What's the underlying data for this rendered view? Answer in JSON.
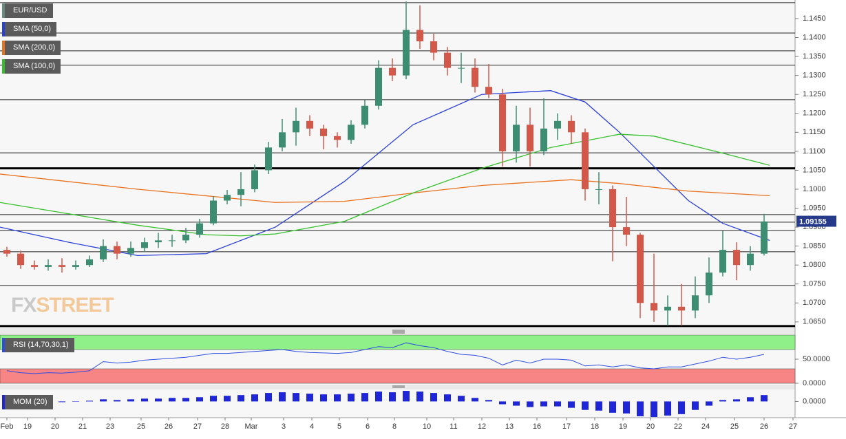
{
  "chart_data": [
    {
      "type": "candlestick",
      "title": "EUR/USD",
      "title_color": "#6a8a80",
      "ylim": [
        1.0637,
        1.1499
      ],
      "yticks": [
        {
          "value": 1.065,
          "label": "1.0650"
        },
        {
          "value": 1.07,
          "label": "1.0700"
        },
        {
          "value": 1.075,
          "label": "1.0750"
        },
        {
          "value": 1.08,
          "label": "1.0800"
        },
        {
          "value": 1.085,
          "label": "1.0850"
        },
        {
          "value": 1.09,
          "label": "1.0900"
        },
        {
          "value": 1.095,
          "label": "1.0950"
        },
        {
          "value": 1.1,
          "label": "1.1000"
        },
        {
          "value": 1.105,
          "label": "1.1050"
        },
        {
          "value": 1.11,
          "label": "1.1100"
        },
        {
          "value": 1.115,
          "label": "1.1150"
        },
        {
          "value": 1.12,
          "label": "1.1200"
        },
        {
          "value": 1.125,
          "label": "1.1250"
        },
        {
          "value": 1.13,
          "label": "1.1300"
        },
        {
          "value": 1.135,
          "label": "1.1350"
        },
        {
          "value": 1.14,
          "label": "1.1400"
        },
        {
          "value": 1.145,
          "label": "1.1450"
        }
      ],
      "xlim": [
        0,
        57.75
      ],
      "xticks": [
        {
          "value": 0.5,
          "label": "Feb"
        },
        {
          "value": 2,
          "label": "19"
        },
        {
          "value": 4,
          "label": "20"
        },
        {
          "value": 6,
          "label": "21"
        },
        {
          "value": 8,
          "label": "23"
        },
        {
          "value": 10.25,
          "label": "25"
        },
        {
          "value": 12.25,
          "label": "26"
        },
        {
          "value": 14.35,
          "label": "27"
        },
        {
          "value": 16.35,
          "label": "28"
        },
        {
          "value": 18.25,
          "label": "Mar"
        },
        {
          "value": 20.6,
          "label": "3"
        },
        {
          "value": 22.65,
          "label": "4"
        },
        {
          "value": 24.65,
          "label": "5"
        },
        {
          "value": 26.7,
          "label": "6"
        },
        {
          "value": 28.65,
          "label": "8"
        },
        {
          "value": 31,
          "label": "10"
        },
        {
          "value": 32.95,
          "label": "11"
        },
        {
          "value": 35,
          "label": "12"
        },
        {
          "value": 37,
          "label": "13"
        },
        {
          "value": 39,
          "label": "16"
        },
        {
          "value": 41.15,
          "label": "17"
        },
        {
          "value": 43.2,
          "label": "18"
        },
        {
          "value": 45.25,
          "label": "19"
        },
        {
          "value": 47.25,
          "label": "20"
        },
        {
          "value": 49.25,
          "label": "22"
        },
        {
          "value": 51.25,
          "label": "24"
        },
        {
          "value": 53.35,
          "label": "25"
        },
        {
          "value": 55.5,
          "label": "26"
        },
        {
          "value": 57.6,
          "label": "27"
        }
      ],
      "up_color": "#3d8d72",
      "down_color": "#d4584a",
      "open": [
        1.084,
        1.083,
        1.08,
        1.0795,
        1.08,
        1.0795,
        1.08,
        1.0815,
        1.085,
        1.083,
        1.0845,
        1.086,
        1.0865,
        1.0865,
        1.088,
        1.091,
        1.097,
        1.0985,
        1.1,
        1.105,
        1.111,
        1.115,
        1.118,
        1.116,
        1.114,
        1.113,
        1.117,
        1.122,
        1.132,
        1.13,
        1.142,
        1.139,
        1.136,
        1.132,
        1.132,
        1.127,
        1.125,
        1.11,
        1.117,
        1.11,
        1.116,
        1.118,
        1.115,
        1.1,
        1.1,
        1.09,
        1.088,
        1.07,
        1.068,
        1.069,
        1.068,
        1.072,
        1.078,
        1.084,
        1.08,
        1.083
      ],
      "high": [
        1.0848,
        1.0838,
        1.0812,
        1.0815,
        1.0818,
        1.0812,
        1.0825,
        1.0868,
        1.0862,
        1.0862,
        1.0872,
        1.0885,
        1.088,
        1.0898,
        1.0922,
        1.0982,
        1.0998,
        1.1045,
        1.1065,
        1.1125,
        1.1185,
        1.1215,
        1.1195,
        1.117,
        1.115,
        1.1182,
        1.1235,
        1.134,
        1.1345,
        1.1495,
        1.1485,
        1.141,
        1.1375,
        1.136,
        1.1345,
        1.133,
        1.1265,
        1.122,
        1.1215,
        1.124,
        1.12,
        1.1195,
        1.116,
        1.1045,
        1.101,
        1.098,
        1.0885,
        1.083,
        1.072,
        1.075,
        1.077,
        1.082,
        1.089,
        1.086,
        1.085,
        1.0935
      ],
      "low": [
        1.0822,
        1.079,
        1.0788,
        1.0785,
        1.078,
        1.0788,
        1.0795,
        1.0808,
        1.0815,
        1.0822,
        1.0835,
        1.0845,
        1.0848,
        1.0858,
        1.0872,
        1.0905,
        1.096,
        1.0955,
        1.0992,
        1.104,
        1.11,
        1.1115,
        1.114,
        1.1105,
        1.111,
        1.112,
        1.116,
        1.121,
        1.1285,
        1.129,
        1.137,
        1.134,
        1.13,
        1.128,
        1.1255,
        1.124,
        1.106,
        1.107,
        1.106,
        1.109,
        1.113,
        1.112,
        1.097,
        1.096,
        1.081,
        1.085,
        1.066,
        1.065,
        1.064,
        1.064,
        1.066,
        1.07,
        1.077,
        1.076,
        1.0785,
        1.0825
      ],
      "close": [
        1.083,
        1.08,
        1.0795,
        1.08,
        1.0795,
        1.08,
        1.0815,
        1.085,
        1.083,
        1.0845,
        1.086,
        1.0865,
        1.0865,
        1.088,
        1.091,
        1.097,
        1.0985,
        1.1,
        1.105,
        1.111,
        1.115,
        1.118,
        1.116,
        1.114,
        1.113,
        1.117,
        1.122,
        1.132,
        1.13,
        1.142,
        1.139,
        1.136,
        1.132,
        1.132,
        1.127,
        1.125,
        1.11,
        1.117,
        1.11,
        1.116,
        1.118,
        1.115,
        1.1,
        1.1,
        1.09,
        1.088,
        1.07,
        1.068,
        1.069,
        1.068,
        1.072,
        1.078,
        1.084,
        1.08,
        1.083,
        1.0915
      ],
      "levels": [
        1.1492,
        1.1412,
        1.1365,
        1.1327,
        1.1236,
        1.1096,
        1.0933,
        1.0913,
        1.0891,
        1.0835,
        1.0746
      ],
      "strong_levels": [
        1.1055,
        1.0639
      ],
      "last_price": 1.09155,
      "last_price_color": "#263a8c",
      "series": [
        {
          "name": "SMA (50,0)",
          "color": "#2a3fd8",
          "x": [
            0,
            5,
            10,
            15,
            20,
            25,
            30,
            35,
            40,
            42.5,
            45,
            47.5,
            50,
            52.5,
            55.9
          ],
          "values": [
            1.09,
            1.086,
            1.0825,
            1.083,
            1.09,
            1.102,
            1.117,
            1.125,
            1.126,
            1.123,
            1.115,
            1.106,
            1.097,
            1.091,
            1.0865
          ]
        },
        {
          "name": "SMA (200,0)",
          "color": "#e9711c",
          "x": [
            0,
            10,
            20,
            25,
            30,
            35,
            41.5,
            45,
            50,
            55.9
          ],
          "values": [
            1.104,
            1.1,
            1.0965,
            1.0968,
            1.099,
            1.101,
            1.1025,
            1.1015,
            1.0995,
            1.0983
          ]
        },
        {
          "name": "SMA (100,0)",
          "color": "#35c02b",
          "x": [
            0,
            5,
            10,
            15,
            17.5,
            20,
            25,
            30,
            35,
            40,
            45,
            47.5,
            52.5,
            55.9
          ],
          "values": [
            1.0965,
            1.0935,
            1.0905,
            1.088,
            1.0877,
            1.0882,
            1.0915,
            1.099,
            1.1055,
            1.111,
            1.1145,
            1.114,
            1.1095,
            1.1063
          ]
        }
      ]
    },
    {
      "type": "line",
      "title": "RSI (14,70,30,1)",
      "color": "#2c4de0",
      "ylim": [
        0,
        100
      ],
      "yticks": [
        {
          "value": 50,
          "label": "50.0000"
        },
        {
          "value": 0,
          "label": "0.0000"
        }
      ],
      "upper_zone": 70,
      "lower_zone": 30,
      "upper_color": "#8ff08a",
      "lower_color": "#f78585",
      "values": [
        26,
        22,
        20,
        22,
        21,
        23,
        26,
        45,
        42,
        44,
        48,
        50,
        52,
        54,
        58,
        62,
        62,
        64,
        66,
        68,
        70,
        66,
        64,
        63,
        62,
        64,
        70,
        76,
        74,
        84,
        78,
        74,
        66,
        60,
        58,
        52,
        38,
        48,
        42,
        50,
        50,
        48,
        36,
        38,
        34,
        38,
        32,
        30,
        34,
        34,
        40,
        46,
        54,
        50,
        54,
        60
      ]
    },
    {
      "type": "bar",
      "title": "MOM (20)",
      "color": "#1f26d8",
      "ylim": [
        -0.023,
        0.016
      ],
      "yticks": [
        {
          "value": 0,
          "label": "0.0000"
        }
      ],
      "values": [
        -0.001,
        -0.002,
        -0.001,
        0,
        -0.001,
        0,
        0.001,
        0.003,
        0.002,
        0.003,
        0.004,
        0.004,
        0.005,
        0.005,
        0.006,
        0.008,
        0.008,
        0.009,
        0.01,
        0.012,
        0.013,
        0.012,
        0.011,
        0.01,
        0.01,
        0.011,
        0.012,
        0.014,
        0.013,
        0.015,
        0.014,
        0.012,
        0.01,
        0.008,
        0.005,
        0.002,
        -0.004,
        -0.006,
        -0.008,
        -0.007,
        -0.007,
        -0.009,
        -0.012,
        -0.013,
        -0.016,
        -0.017,
        -0.021,
        -0.022,
        -0.02,
        -0.018,
        -0.012,
        -0.006,
        0.002,
        0.003,
        0.006,
        0.009
      ]
    }
  ],
  "watermark": [
    "FX",
    "STREET"
  ]
}
